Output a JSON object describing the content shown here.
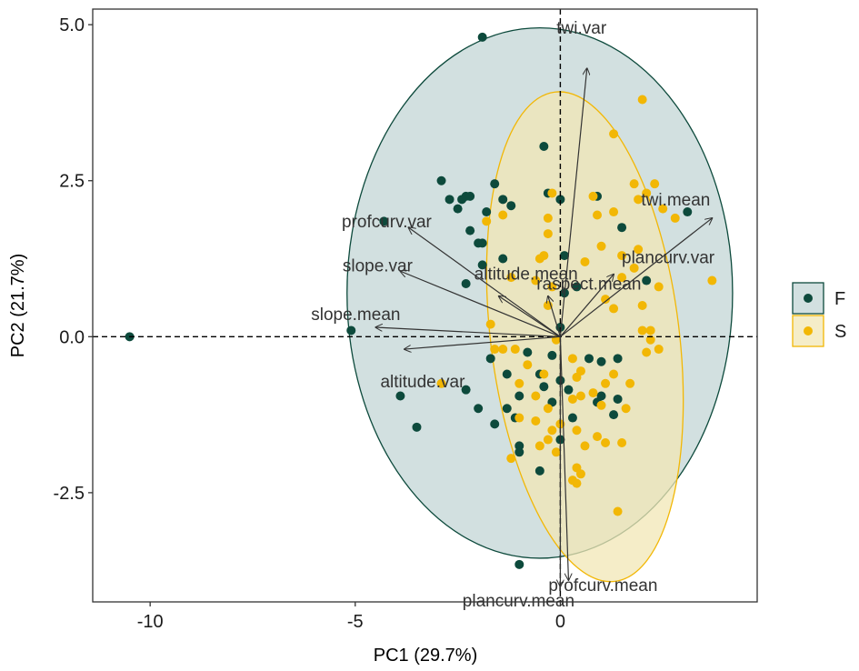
{
  "chart_data": {
    "type": "scatter",
    "subtype": "pca-biplot",
    "title": "",
    "xlabel": "PC1 (29.7%)",
    "ylabel": "PC2 (21.7%)",
    "xlim": [
      -11.4,
      4.8
    ],
    "ylim": [
      -4.25,
      5.25
    ],
    "x_ticks": [
      -10,
      -5,
      0
    ],
    "x_tick_labels": [
      "-10",
      "-5",
      "0"
    ],
    "y_ticks": [
      -2.5,
      0.0,
      2.5,
      5.0
    ],
    "y_tick_labels": [
      "-2.5",
      "0.0",
      "2.5",
      "5.0"
    ],
    "grid": false,
    "reference_lines": {
      "x": 0,
      "y": 0,
      "style": "dashed"
    },
    "legend": {
      "placement": "right",
      "title": ""
    },
    "series": [
      {
        "name": "F",
        "color": "#0d4a3c",
        "ellipse": {
          "cx": -0.5,
          "cy": 0.7,
          "rx": 4.7,
          "ry": 4.25,
          "fill": "#c3d5d5",
          "stroke": "#0d4a3c"
        },
        "points": [
          [
            -10.5,
            0.0
          ],
          [
            -5.1,
            0.1
          ],
          [
            -4.3,
            1.85
          ],
          [
            -3.9,
            -0.95
          ],
          [
            -3.5,
            -1.45
          ],
          [
            -2.9,
            2.5
          ],
          [
            -2.7,
            2.2
          ],
          [
            -2.4,
            2.2
          ],
          [
            -2.3,
            2.25
          ],
          [
            -2.2,
            2.25
          ],
          [
            -2.5,
            2.05
          ],
          [
            -2.2,
            1.7
          ],
          [
            -2.0,
            1.5
          ],
          [
            -1.9,
            1.5
          ],
          [
            -1.9,
            1.15
          ],
          [
            -1.8,
            2.0
          ],
          [
            -1.6,
            2.45
          ],
          [
            -1.4,
            1.25
          ],
          [
            -1.4,
            2.2
          ],
          [
            -1.2,
            2.1
          ],
          [
            -2.3,
            0.85
          ],
          [
            -2.3,
            -0.85
          ],
          [
            -2.0,
            -1.15
          ],
          [
            -1.9,
            4.8
          ],
          [
            -1.7,
            -0.35
          ],
          [
            -1.6,
            -1.4
          ],
          [
            -1.3,
            -0.6
          ],
          [
            -1.3,
            -1.15
          ],
          [
            -1.1,
            -1.3
          ],
          [
            -1.0,
            -1.75
          ],
          [
            -1.0,
            -1.85
          ],
          [
            -1.0,
            -0.95
          ],
          [
            -0.8,
            -0.25
          ],
          [
            -0.5,
            -0.6
          ],
          [
            -0.5,
            -2.15
          ],
          [
            -0.4,
            3.05
          ],
          [
            -0.3,
            2.3
          ],
          [
            -0.2,
            -1.05
          ],
          [
            -0.2,
            -0.3
          ],
          [
            0.0,
            0.15
          ],
          [
            0.0,
            -0.7
          ],
          [
            0.0,
            2.2
          ],
          [
            0.1,
            1.3
          ],
          [
            0.1,
            0.7
          ],
          [
            0.0,
            -1.65
          ],
          [
            0.2,
            -0.85
          ],
          [
            0.3,
            -1.3
          ],
          [
            0.7,
            -0.35
          ],
          [
            0.9,
            -1.05
          ],
          [
            1.0,
            -0.4
          ],
          [
            1.0,
            -0.95
          ],
          [
            1.4,
            -0.35
          ],
          [
            1.4,
            -1.0
          ],
          [
            1.3,
            -1.25
          ],
          [
            0.4,
            0.8
          ],
          [
            0.9,
            2.25
          ],
          [
            1.5,
            1.75
          ],
          [
            2.1,
            0.9
          ],
          [
            3.1,
            2.0
          ],
          [
            -1.0,
            -3.65
          ],
          [
            -0.4,
            -0.8
          ]
        ]
      },
      {
        "name": "S",
        "color": "#f2b705",
        "ellipse": {
          "cx": 0.6,
          "cy": 0.0,
          "rx": 2.3,
          "ry": 3.95,
          "rotation_deg": -7,
          "fill": "#f2e7b5",
          "stroke": "#f2b705"
        },
        "points": [
          [
            2.0,
            3.8
          ],
          [
            1.3,
            3.25
          ],
          [
            1.8,
            2.45
          ],
          [
            2.3,
            2.45
          ],
          [
            2.1,
            2.3
          ],
          [
            1.9,
            2.2
          ],
          [
            2.5,
            2.05
          ],
          [
            2.8,
            1.9
          ],
          [
            0.8,
            2.25
          ],
          [
            1.3,
            2.0
          ],
          [
            0.9,
            1.95
          ],
          [
            1.0,
            1.45
          ],
          [
            0.6,
            1.2
          ],
          [
            1.5,
            1.3
          ],
          [
            1.9,
            1.4
          ],
          [
            1.8,
            1.1
          ],
          [
            1.5,
            0.95
          ],
          [
            1.1,
            0.6
          ],
          [
            1.3,
            0.45
          ],
          [
            2.0,
            0.5
          ],
          [
            2.4,
            0.8
          ],
          [
            2.2,
            0.1
          ],
          [
            2.0,
            0.1
          ],
          [
            2.2,
            -0.05
          ],
          [
            2.1,
            -0.25
          ],
          [
            2.4,
            -0.2
          ],
          [
            3.7,
            0.9
          ],
          [
            -0.3,
            1.65
          ],
          [
            -0.3,
            1.9
          ],
          [
            -0.4,
            1.3
          ],
          [
            -0.5,
            1.25
          ],
          [
            -0.2,
            2.3
          ],
          [
            -1.4,
            1.95
          ],
          [
            -1.8,
            1.85
          ],
          [
            -1.2,
            0.95
          ],
          [
            -0.6,
            0.9
          ],
          [
            -0.3,
            0.5
          ],
          [
            -0.1,
            -0.05
          ],
          [
            -1.7,
            0.2
          ],
          [
            -1.6,
            -0.2
          ],
          [
            -1.4,
            -0.2
          ],
          [
            -1.1,
            -0.2
          ],
          [
            -0.8,
            -0.45
          ],
          [
            -0.4,
            -0.6
          ],
          [
            -1.0,
            -0.75
          ],
          [
            -0.6,
            -0.95
          ],
          [
            -0.3,
            -1.15
          ],
          [
            -1.0,
            -1.3
          ],
          [
            -0.6,
            -1.35
          ],
          [
            -0.2,
            -1.5
          ],
          [
            0.3,
            -0.35
          ],
          [
            0.4,
            -0.65
          ],
          [
            0.5,
            -0.95
          ],
          [
            0.4,
            -1.5
          ],
          [
            0.6,
            -1.75
          ],
          [
            0.4,
            -2.1
          ],
          [
            0.3,
            -2.3
          ],
          [
            0.0,
            -1.4
          ],
          [
            -0.1,
            -1.85
          ],
          [
            -0.3,
            -1.65
          ],
          [
            0.9,
            -1.6
          ],
          [
            1.1,
            -1.7
          ],
          [
            1.5,
            -1.7
          ],
          [
            1.7,
            -0.75
          ],
          [
            1.3,
            -0.6
          ],
          [
            1.1,
            -0.75
          ],
          [
            0.8,
            -0.9
          ],
          [
            1.0,
            -1.1
          ],
          [
            1.6,
            -1.15
          ],
          [
            0.5,
            -0.55
          ],
          [
            0.3,
            -1.0
          ],
          [
            -0.2,
            0.8
          ],
          [
            -2.9,
            -0.75
          ],
          [
            -1.2,
            -1.95
          ],
          [
            -0.5,
            -1.75
          ],
          [
            1.4,
            -2.8
          ],
          [
            0.4,
            -2.35
          ],
          [
            0.5,
            -2.2
          ]
        ]
      }
    ],
    "loadings": [
      {
        "label": "twi.var",
        "x": 0.65,
        "y": 4.3
      },
      {
        "label": "twi.mean",
        "x": 3.7,
        "y": 1.9
      },
      {
        "label": "plancurv.var",
        "x": 1.3,
        "y": 1.0
      },
      {
        "label": "profcurv.var",
        "x": -3.7,
        "y": 1.75
      },
      {
        "label": "slope.var",
        "x": -3.9,
        "y": 1.05
      },
      {
        "label": "altitude.mean",
        "x": -1.5,
        "y": 0.65
      },
      {
        "label": "slope.mean",
        "x": -4.5,
        "y": 0.15
      },
      {
        "label": "raspect.mean",
        "x": -0.3,
        "y": 0.65
      },
      {
        "label": "altitude.var",
        "x": -3.8,
        "y": -0.2
      },
      {
        "label": "profcurv.mean",
        "x": 0.2,
        "y": -3.9
      },
      {
        "label": "plancurv.mean",
        "x": 0.0,
        "y": -4.0
      }
    ]
  }
}
